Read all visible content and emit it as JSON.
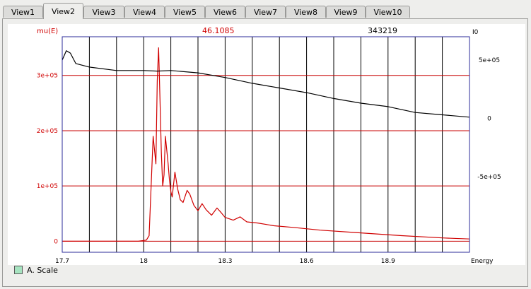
{
  "tabs": [
    "View1",
    "View2",
    "View3",
    "View4",
    "View5",
    "View6",
    "View7",
    "View8",
    "View9",
    "View10"
  ],
  "active_tab": 1,
  "header": {
    "left_axis_label": "mu(E)",
    "left_value": "46.1085",
    "right_value": "343219",
    "right_axis_label": "I0"
  },
  "x_axis_label": "Energy",
  "legend_label": "A. Scale",
  "colors": {
    "mu_series": "#d00000",
    "i0_series": "#000000",
    "frame": "#2b2b9a",
    "h_grid": "#c80000",
    "v_grid": "#000000",
    "legend_swatch": "#a6e3c0"
  },
  "chart_data": {
    "type": "line",
    "xlabel": "Energy",
    "x_ticks": [
      "17.7",
      "18",
      "18.3",
      "18.6",
      "18.9"
    ],
    "xlim": [
      17.7,
      19.2
    ],
    "left_axis": {
      "label": "mu(E)",
      "ticks": [
        "0",
        "1e+05",
        "2e+05",
        "3e+05"
      ],
      "ylim": [
        -20000,
        370000
      ]
    },
    "right_axis": {
      "label": "I0",
      "ticks": [
        "5e+05",
        "0",
        "-5e+05"
      ],
      "ylim": [
        -1150000,
        700000
      ]
    },
    "grid": true,
    "series": [
      {
        "name": "mu(E)",
        "axis": "left",
        "color": "#d00000",
        "x": [
          17.7,
          17.8,
          17.9,
          17.98,
          18.01,
          18.02,
          18.035,
          18.045,
          18.05,
          18.055,
          18.06,
          18.065,
          18.07,
          18.075,
          18.08,
          18.09,
          18.095,
          18.1,
          18.105,
          18.115,
          18.125,
          18.135,
          18.145,
          18.16,
          18.17,
          18.185,
          18.2,
          18.215,
          18.23,
          18.25,
          18.27,
          18.285,
          18.3,
          18.33,
          18.355,
          18.38,
          18.42,
          18.48,
          18.55,
          18.65,
          18.8,
          18.95,
          19.1,
          19.2
        ],
        "y": [
          0,
          0,
          0,
          0,
          2000,
          10000,
          190000,
          140000,
          290000,
          350000,
          260000,
          160000,
          100000,
          120000,
          190000,
          140000,
          110000,
          90000,
          80000,
          125000,
          95000,
          75000,
          70000,
          92000,
          85000,
          65000,
          55000,
          68000,
          57000,
          47000,
          60000,
          52000,
          43000,
          38000,
          44000,
          35000,
          33000,
          28000,
          25000,
          20000,
          15000,
          10000,
          6000,
          4000
        ]
      },
      {
        "name": "I0",
        "axis": "right",
        "color": "#000000",
        "x": [
          17.7,
          17.715,
          17.73,
          17.75,
          17.8,
          17.9,
          18.0,
          18.05,
          18.1,
          18.2,
          18.3,
          18.4,
          18.5,
          18.6,
          18.7,
          18.8,
          18.9,
          19.0,
          19.1,
          19.2
        ],
        "y": [
          500000,
          580000,
          560000,
          470000,
          440000,
          410000,
          410000,
          405000,
          410000,
          390000,
          350000,
          300000,
          260000,
          220000,
          170000,
          130000,
          100000,
          50000,
          30000,
          10000
        ]
      }
    ]
  }
}
